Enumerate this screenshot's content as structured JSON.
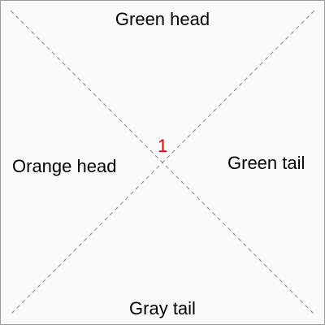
{
  "tile": {
    "top_label": "Green head",
    "bottom_label": "Gray tail",
    "left_label": "Orange head",
    "right_label": "Green tail",
    "number": "1",
    "number_color": "#e00000",
    "diagonal_color": "#8a8a8a"
  }
}
